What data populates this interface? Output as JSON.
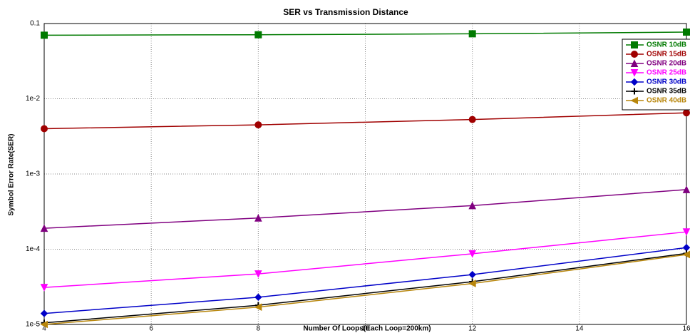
{
  "chart_data": {
    "type": "line",
    "title": "SER vs Transmission Distance",
    "x_label": "Number Of Loops(Each Loop=200km)",
    "y_label": "Symbol Error Rate(SER)",
    "x": [
      4,
      8,
      12,
      16
    ],
    "xlim": [
      4,
      16
    ],
    "xticks": [
      4,
      6,
      8,
      10,
      12,
      14,
      16
    ],
    "ylim": [
      1e-05,
      0.1
    ],
    "yticks": [
      0.1,
      {
        "value": 0.01,
        "label": "1e-2"
      },
      {
        "value": 0.001,
        "label": "1e-3"
      },
      {
        "value": 0.0001,
        "label": "1e-4"
      },
      {
        "value": 1e-05,
        "label": "1e-5"
      }
    ],
    "y_scale": "log",
    "grid": true,
    "legend": "upper right",
    "series": [
      {
        "name": "OSNR 10dB",
        "color": "#007a00",
        "marker": "square",
        "values": [
          0.07,
          0.071,
          0.073,
          0.077
        ]
      },
      {
        "name": "OSNR 15dB",
        "color": "#a00000",
        "marker": "circle",
        "values": [
          0.004,
          0.0045,
          0.0053,
          0.0065
        ]
      },
      {
        "name": "OSNR 20dB",
        "color": "#800080",
        "marker": "triangle-up",
        "values": [
          0.00019,
          0.00026,
          0.00038,
          0.00062
        ]
      },
      {
        "name": "OSNR 25dB",
        "color": "#ff00ff",
        "marker": "triangle-down",
        "values": [
          3.1e-05,
          4.7e-05,
          8.7e-05,
          0.00017
        ]
      },
      {
        "name": "OSNR 30dB",
        "color": "#0000c8",
        "marker": "diamond",
        "values": [
          1.4e-05,
          2.3e-05,
          4.6e-05,
          0.000105
        ]
      },
      {
        "name": "OSNR 35dB",
        "color": "#000000",
        "marker": "plus",
        "values": [
          1.05e-05,
          1.8e-05,
          3.7e-05,
          8.8e-05
        ]
      },
      {
        "name": "OSNR 40dB",
        "color": "#b8860b",
        "marker": "triangle-left",
        "values": [
          1e-05,
          1.7e-05,
          3.5e-05,
          8.5e-05
        ]
      }
    ]
  }
}
